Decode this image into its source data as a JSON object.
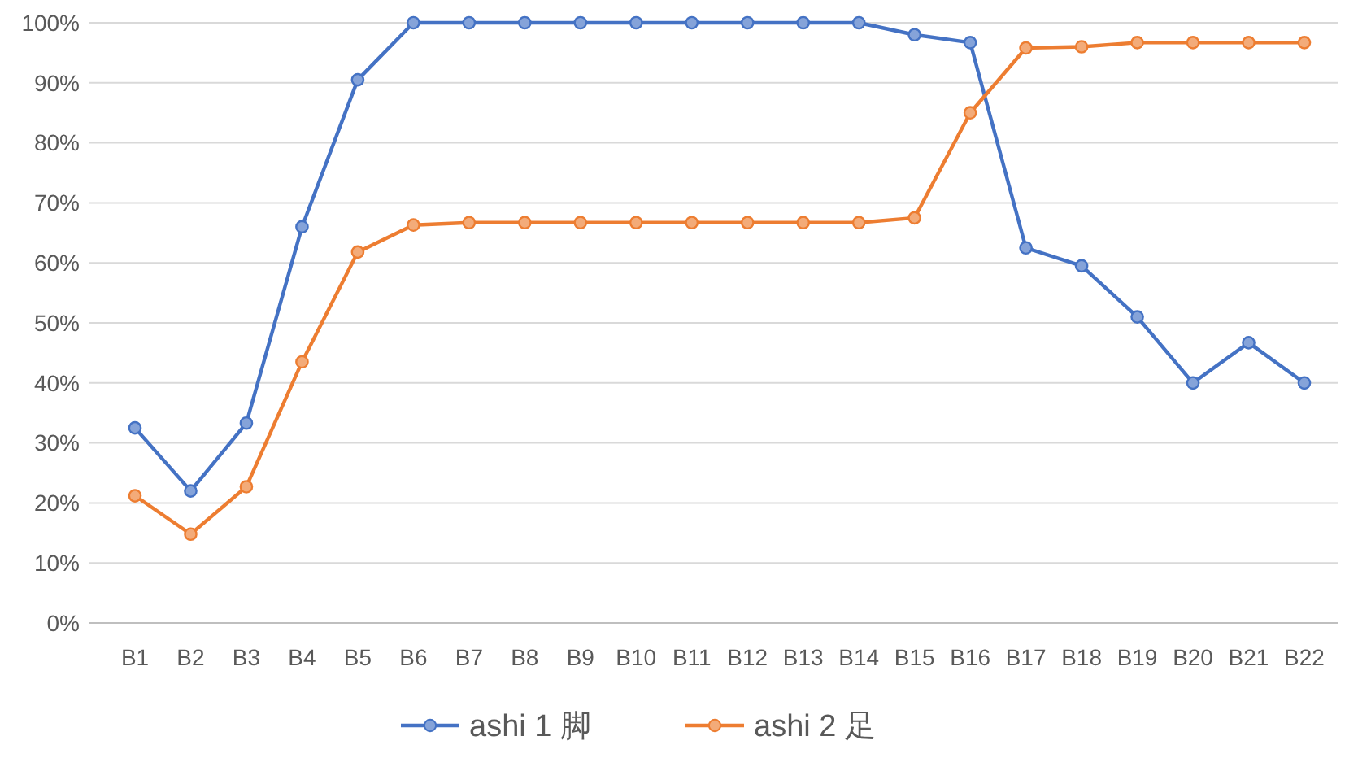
{
  "chart_data": {
    "type": "line",
    "categories": [
      "B1",
      "B2",
      "B3",
      "B4",
      "B5",
      "B6",
      "B7",
      "B8",
      "B9",
      "B10",
      "B11",
      "B12",
      "B13",
      "B14",
      "B15",
      "B16",
      "B17",
      "B18",
      "B19",
      "B20",
      "B21",
      "B22"
    ],
    "series": [
      {
        "name": "ashi 1 脚",
        "color": "#4472c4",
        "values": [
          32.5,
          22,
          33.3,
          66,
          90.5,
          100,
          100,
          100,
          100,
          100,
          100,
          100,
          100,
          100,
          98,
          96.7,
          62.5,
          59.5,
          51,
          40,
          46.7,
          40
        ]
      },
      {
        "name": "ashi 2 足",
        "color": "#ed7d31",
        "values": [
          21.2,
          14.8,
          22.7,
          43.5,
          61.8,
          66.3,
          66.7,
          66.7,
          66.7,
          66.7,
          66.7,
          66.7,
          66.7,
          66.7,
          67.5,
          85,
          95.8,
          96,
          96.7,
          96.7,
          96.7,
          96.7
        ]
      }
    ],
    "ylim": [
      0,
      100
    ],
    "yticks": [
      {
        "value": 0,
        "label": "0%"
      },
      {
        "value": 10,
        "label": "10%"
      },
      {
        "value": 20,
        "label": "20%"
      },
      {
        "value": 30,
        "label": "30%"
      },
      {
        "value": 40,
        "label": "40%"
      },
      {
        "value": 50,
        "label": "50%"
      },
      {
        "value": 60,
        "label": "60%"
      },
      {
        "value": 70,
        "label": "70%"
      },
      {
        "value": 80,
        "label": "80%"
      },
      {
        "value": 90,
        "label": "90%"
      },
      {
        "value": 100,
        "label": "100%"
      }
    ],
    "grid": "y",
    "legend": "bottom",
    "marker": "circle",
    "line_style": "solid"
  }
}
